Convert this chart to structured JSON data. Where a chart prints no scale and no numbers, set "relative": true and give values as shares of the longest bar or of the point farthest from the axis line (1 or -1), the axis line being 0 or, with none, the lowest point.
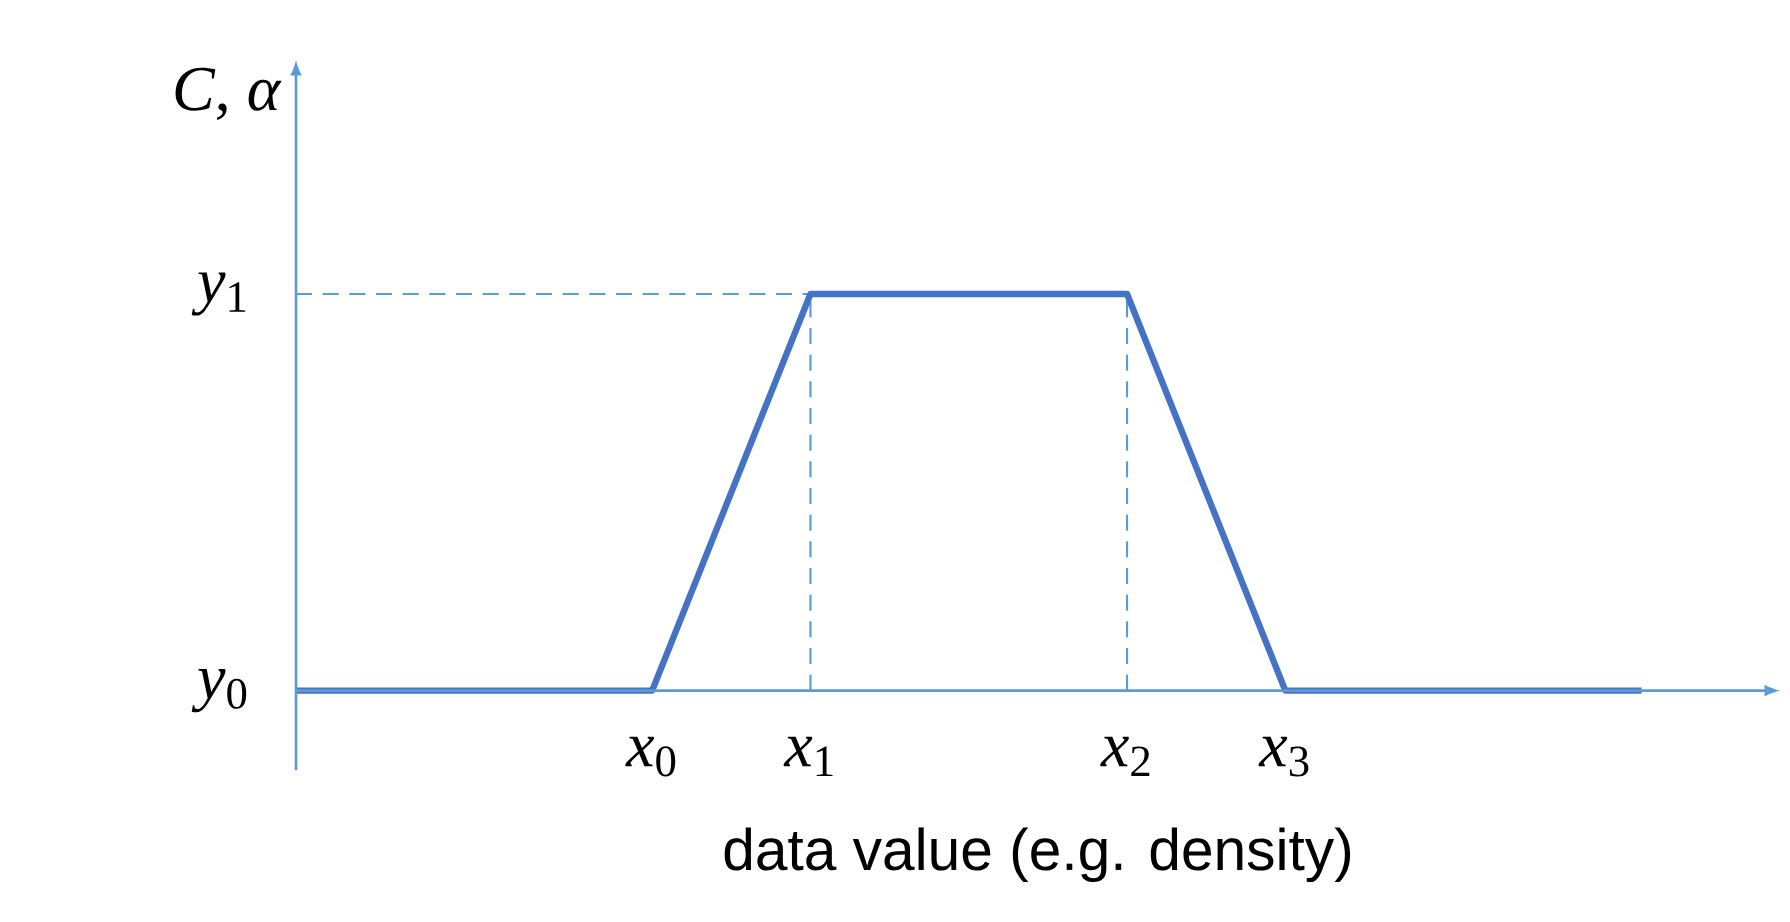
{
  "chart_data": {
    "type": "line",
    "relative": true,
    "xlabel": "data value (e.g. density)",
    "ylabel": "*C*, *α*",
    "categories": [
      null,
      null,
      null,
      null,
      null,
      null,
      null,
      null,
      null,
      "*x*$_{0}$",
      null,
      null,
      null,
      "*x*$_{1}$",
      null,
      null,
      null,
      null,
      null,
      null,
      null,
      "*x*$_{2}$",
      null,
      null,
      null,
      "*x*$_{3}$",
      null,
      null,
      null,
      null,
      null,
      null,
      null,
      null,
      null
    ],
    "annotations": [
      "*y*$_{0}$",
      "*y*$_{1}$"
    ],
    "series": [
      {
        "color": "#4472c4",
        "values": [
          0,
          0,
          0,
          0,
          0,
          0,
          0,
          0,
          0,
          0,
          0.25,
          0.5,
          0.75,
          1,
          1,
          1,
          1,
          1,
          1,
          1,
          1,
          1,
          0.75,
          0.5,
          0.25,
          0,
          0,
          0,
          0,
          0,
          0,
          0,
          0,
          0,
          0
        ]
      }
    ]
  }
}
